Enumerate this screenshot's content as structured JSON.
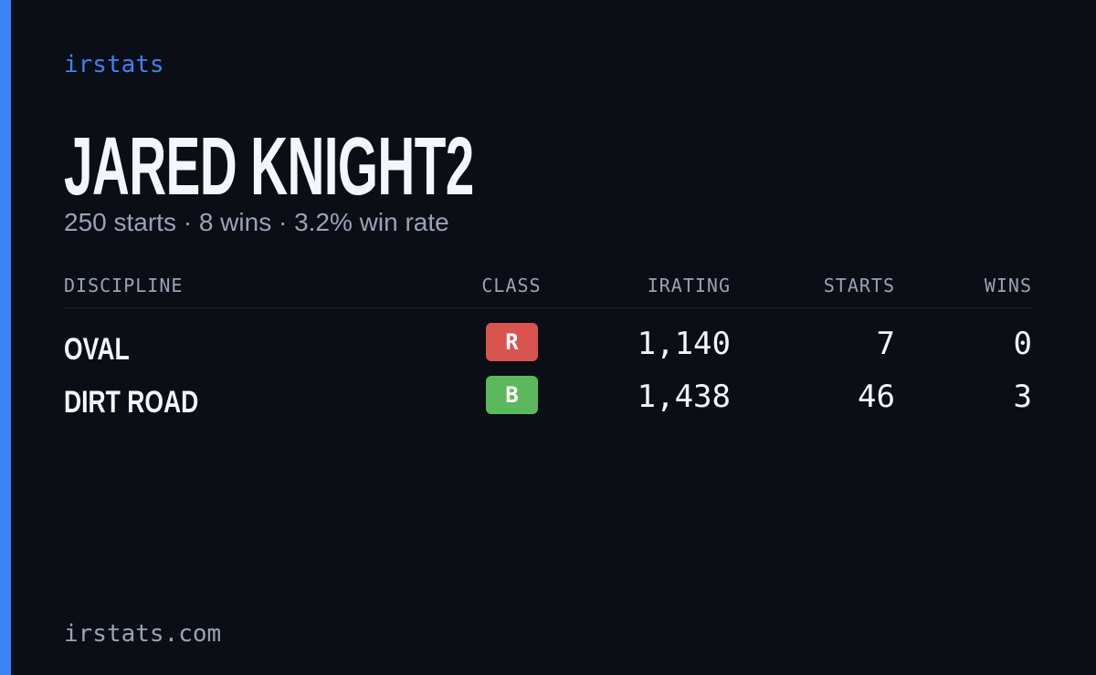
{
  "brand": "irstats",
  "title": "JARED KNIGHT2",
  "subtitle": "250 starts · 8 wins · 3.2% win rate",
  "table": {
    "headers": [
      "DISCIPLINE",
      "CLASS",
      "IRATING",
      "STARTS",
      "WINS"
    ],
    "rows": [
      {
        "discipline": "OVAL",
        "class": "R",
        "class_color": "#d9534f",
        "irating": "1,140",
        "starts": "7",
        "wins": "0"
      },
      {
        "discipline": "DIRT ROAD",
        "class": "B",
        "class_color": "#5cb85c",
        "irating": "1,438",
        "starts": "46",
        "wins": "3"
      }
    ]
  },
  "footer": "irstats.com"
}
